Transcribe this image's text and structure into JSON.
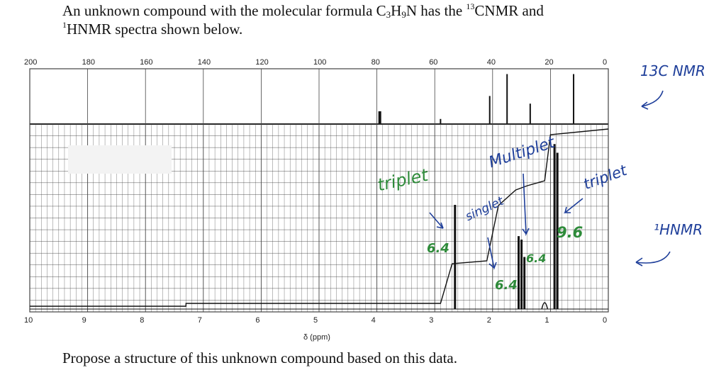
{
  "question": {
    "intro_prefix": "An unknown compound with the molecular formula C",
    "formula_c": "3",
    "formula_h_label": "H",
    "formula_h": "9",
    "formula_n_label": "N",
    "has_the": " has the ",
    "c13_sup": "13",
    "cnmr_label": "CNMR and",
    "h1_sup": "1",
    "hnmr_line": "HNMR spectra shown below.",
    "footer": "Propose a structure of this unknown compound based on this data."
  },
  "c13_axis_ticks": [
    "200",
    "180",
    "160",
    "140",
    "120",
    "100",
    "80",
    "60",
    "40",
    "20",
    "0"
  ],
  "h1_axis_ticks": [
    "10",
    "9",
    "8",
    "7",
    "6",
    "5",
    "4",
    "3",
    "2",
    "1",
    "0"
  ],
  "h1_axis_unit": "δ (ppm)",
  "annotations": {
    "c13_label": "13C NMR",
    "h1_label": "¹HNMR",
    "triplet_left": "triplet",
    "multiplet": "Multiplet",
    "singlet": "singlet",
    "triplet_right": "triplet",
    "integral_1": "6.4",
    "integral_2": "6.4",
    "integral_3": "6.4",
    "integral_4": "9.6"
  },
  "colors": {
    "pen_blue": "#1f3f9a",
    "pen_green": "#2e8b3a",
    "grid": "#444444"
  }
}
